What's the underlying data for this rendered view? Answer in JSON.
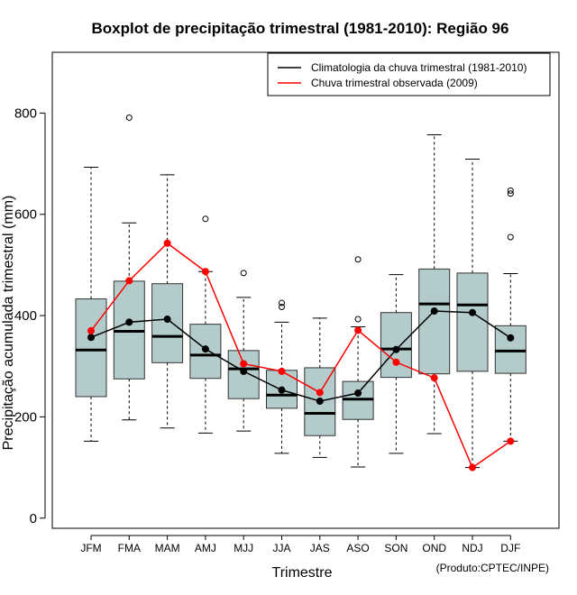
{
  "chart_data": {
    "type": "boxplot",
    "title": "Boxplot de precipitação trimestral (1981-2010): Região 96",
    "xlabel": "Trimestre",
    "ylabel": "Precipitação acumulada trimestral (mm)",
    "credit": "(Produto:CPTEC/INPE)",
    "ylim": [
      -20,
      920
    ],
    "yticks": [
      0,
      200,
      400,
      600,
      800
    ],
    "categories": [
      "JFM",
      "FMA",
      "MAM",
      "AMJ",
      "MJJ",
      "JJA",
      "JAS",
      "ASO",
      "SON",
      "OND",
      "NDJ",
      "DJF"
    ],
    "boxes": [
      {
        "whisker_low": 152,
        "q1": 240,
        "median": 332,
        "q3": 433,
        "whisker_high": 693,
        "outliers": []
      },
      {
        "whisker_low": 194,
        "q1": 275,
        "median": 369,
        "q3": 468,
        "whisker_high": 583,
        "outliers": [
          791
        ]
      },
      {
        "whisker_low": 178,
        "q1": 307,
        "median": 359,
        "q3": 463,
        "whisker_high": 678,
        "outliers": []
      },
      {
        "whisker_low": 168,
        "q1": 276,
        "median": 322,
        "q3": 383,
        "whisker_high": 487,
        "outliers": [
          591
        ]
      },
      {
        "whisker_low": 172,
        "q1": 236,
        "median": 295,
        "q3": 331,
        "whisker_high": 436,
        "outliers": [
          484
        ]
      },
      {
        "whisker_low": 128,
        "q1": 217,
        "median": 243,
        "q3": 292,
        "whisker_high": 387,
        "outliers": [
          417,
          425
        ]
      },
      {
        "whisker_low": 120,
        "q1": 163,
        "median": 207,
        "q3": 297,
        "whisker_high": 395,
        "outliers": []
      },
      {
        "whisker_low": 101,
        "q1": 195,
        "median": 235,
        "q3": 270,
        "whisker_high": 378,
        "outliers": [
          393,
          511
        ]
      },
      {
        "whisker_low": 128,
        "q1": 278,
        "median": 334,
        "q3": 406,
        "whisker_high": 481,
        "outliers": []
      },
      {
        "whisker_low": 167,
        "q1": 285,
        "median": 423,
        "q3": 492,
        "whisker_high": 757,
        "outliers": []
      },
      {
        "whisker_low": 100,
        "q1": 290,
        "median": 421,
        "q3": 484,
        "whisker_high": 709,
        "outliers": []
      },
      {
        "whisker_low": 152,
        "q1": 286,
        "median": 330,
        "q3": 380,
        "whisker_high": 483,
        "outliers": [
          555,
          641,
          647
        ]
      }
    ],
    "series": [
      {
        "name": "Climatologia da chuva trimestral (1981-2010)",
        "color": "#000000",
        "values": [
          357,
          387,
          393,
          334,
          290,
          253,
          231,
          247,
          333,
          409,
          406,
          356
        ]
      },
      {
        "name": "Chuva trimestral observada (2009)",
        "color": "#ff0000",
        "values": [
          370,
          469,
          543,
          487,
          305,
          290,
          248,
          371,
          308,
          277,
          100,
          152
        ]
      }
    ],
    "box_fill": "#b3cbcb",
    "legend_position": "top-right"
  }
}
